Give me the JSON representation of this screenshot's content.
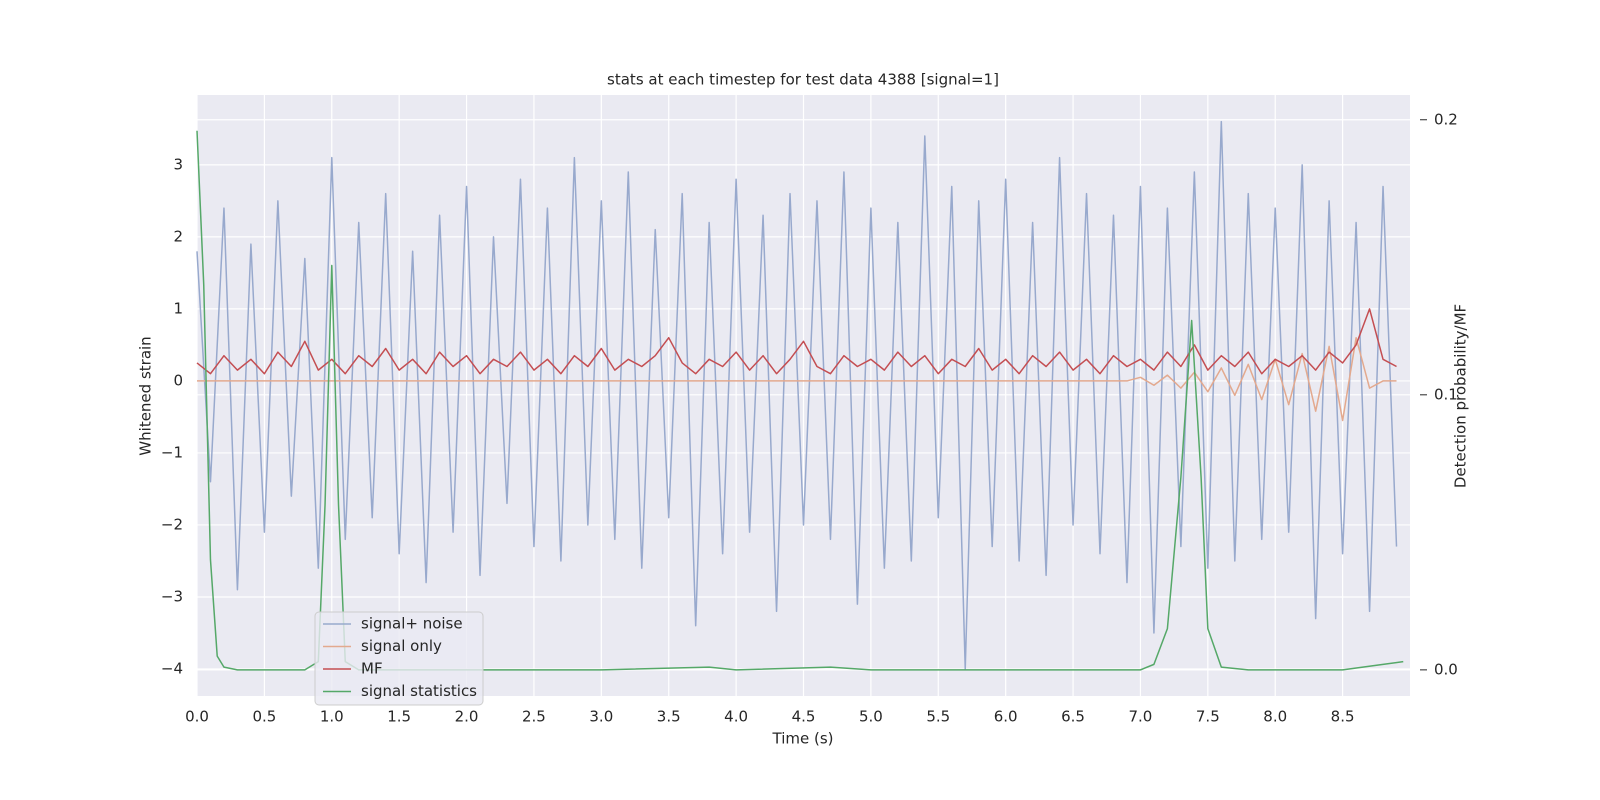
{
  "chart_data": {
    "type": "line",
    "title": "stats at each timestep for test data 4388 [signal=1]",
    "x_label": "Time (s)",
    "y_label": "Whitened strain",
    "y2_label": "Detection probability/MF",
    "xlim": [
      0,
      9.0
    ],
    "ylim": [
      -4.375,
      3.97
    ],
    "y2lim": [
      -0.0095,
      0.209
    ],
    "xticks": [
      {
        "value": 0,
        "label": "0.0"
      },
      0.5,
      {
        "value": 1,
        "label": "1.0"
      },
      1.5,
      {
        "value": 2,
        "label": "2.0"
      },
      2.5,
      {
        "value": 3,
        "label": "3.0"
      },
      3.5,
      {
        "value": 4,
        "label": "4.0"
      },
      4.5,
      {
        "value": 5,
        "label": "5.0"
      },
      5.5,
      {
        "value": 6,
        "label": "6.0"
      },
      6.5,
      {
        "value": 7,
        "label": "7.0"
      },
      7.5,
      {
        "value": 8,
        "label": "8.0"
      },
      8.5
    ],
    "yticks": [
      {
        "value": -4,
        "label": "−4"
      },
      {
        "value": -3,
        "label": "−3"
      },
      {
        "value": -2,
        "label": "−2"
      },
      {
        "value": -1,
        "label": "−1"
      },
      0,
      1,
      2,
      3
    ],
    "y2ticks": [
      {
        "value": 0,
        "label": "0.0"
      },
      0.1,
      0.2
    ],
    "grid": true,
    "legend": "lower left",
    "x": [
      0.0,
      0.1,
      0.2,
      0.3,
      0.4,
      0.5,
      0.6,
      0.7,
      0.8,
      0.9,
      1.0,
      1.1,
      1.2,
      1.3,
      1.4,
      1.5,
      1.6,
      1.7,
      1.8,
      1.9,
      2.0,
      2.1,
      2.2,
      2.3,
      2.4,
      2.5,
      2.6,
      2.7,
      2.8,
      2.9,
      3.0,
      3.1,
      3.2,
      3.3,
      3.4,
      3.5,
      3.6,
      3.7,
      3.8,
      3.9,
      4.0,
      4.1,
      4.2,
      4.3,
      4.4,
      4.5,
      4.6,
      4.7,
      4.8,
      4.9,
      5.0,
      5.1,
      5.2,
      5.3,
      5.4,
      5.5,
      5.6,
      5.7,
      5.8,
      5.9,
      6.0,
      6.1,
      6.2,
      6.3,
      6.4,
      6.5,
      6.6,
      6.7,
      6.8,
      6.9,
      7.0,
      7.1,
      7.2,
      7.3,
      7.4,
      7.5,
      7.6,
      7.7,
      7.8,
      7.9,
      8.0,
      8.1,
      8.2,
      8.3,
      8.4,
      8.5,
      8.6,
      8.7,
      8.8,
      8.9
    ],
    "series": [
      {
        "name": "signal+ noise",
        "color": "#98a9cd",
        "values": [
          1.8,
          -1.4,
          2.4,
          -2.9,
          1.9,
          -2.1,
          2.5,
          -1.6,
          1.7,
          -2.6,
          3.1,
          -2.2,
          2.2,
          -1.9,
          2.6,
          -2.4,
          1.8,
          -2.8,
          2.3,
          -2.1,
          2.7,
          -2.7,
          2.0,
          -1.7,
          2.8,
          -2.3,
          2.4,
          -2.5,
          3.1,
          -2.0,
          2.5,
          -2.2,
          2.9,
          -2.6,
          2.1,
          -1.9,
          2.6,
          -3.4,
          2.2,
          -2.4,
          2.8,
          -2.1,
          2.3,
          -3.2,
          2.6,
          -2.0,
          2.5,
          -2.2,
          2.9,
          -3.1,
          2.4,
          -2.6,
          2.2,
          -2.5,
          3.4,
          -1.9,
          2.7,
          -4.0,
          2.5,
          -2.3,
          2.8,
          -2.5,
          2.2,
          -2.7,
          3.1,
          -2.0,
          2.6,
          -2.4,
          2.3,
          -2.8,
          2.7,
          -3.5,
          2.4,
          -2.3,
          2.9,
          -2.6,
          3.6,
          -2.5,
          2.6,
          -2.2,
          2.4,
          -2.1,
          3.0,
          -3.3,
          2.5,
          -2.4,
          2.2,
          -3.2,
          2.7,
          -2.3
        ]
      },
      {
        "name": "signal only",
        "color": "#e3a98e",
        "values": [
          0,
          0,
          0,
          0,
          0,
          0,
          0,
          0,
          0,
          0,
          0,
          0,
          0,
          0,
          0,
          0,
          0,
          0,
          0,
          0,
          0,
          0,
          0,
          0,
          0,
          0,
          0,
          0,
          0,
          0,
          0,
          0,
          0,
          0,
          0,
          0,
          0,
          0,
          0,
          0,
          0,
          0,
          0,
          0,
          0,
          0,
          0,
          0,
          0,
          0,
          0,
          0,
          0,
          0,
          0,
          0,
          0,
          0,
          0,
          0,
          0,
          0,
          0,
          0,
          0,
          0,
          0,
          0,
          0,
          0,
          0.05,
          -0.06,
          0.08,
          -0.1,
          0.12,
          -0.15,
          0.18,
          -0.2,
          0.23,
          -0.26,
          0.3,
          -0.33,
          0.38,
          -0.42,
          0.48,
          -0.55,
          0.6,
          -0.1,
          0,
          0
        ]
      },
      {
        "name": "MF",
        "color": "#c44e52",
        "values": [
          0.25,
          0.1,
          0.35,
          0.15,
          0.3,
          0.1,
          0.4,
          0.2,
          0.55,
          0.15,
          0.3,
          0.1,
          0.35,
          0.2,
          0.45,
          0.15,
          0.3,
          0.1,
          0.4,
          0.2,
          0.35,
          0.1,
          0.3,
          0.2,
          0.4,
          0.15,
          0.3,
          0.1,
          0.35,
          0.2,
          0.45,
          0.15,
          0.3,
          0.2,
          0.35,
          0.6,
          0.25,
          0.1,
          0.3,
          0.2,
          0.4,
          0.15,
          0.35,
          0.1,
          0.3,
          0.55,
          0.2,
          0.1,
          0.35,
          0.2,
          0.3,
          0.15,
          0.4,
          0.2,
          0.35,
          0.1,
          0.3,
          0.2,
          0.45,
          0.15,
          0.3,
          0.1,
          0.35,
          0.2,
          0.4,
          0.15,
          0.3,
          0.1,
          0.35,
          0.2,
          0.3,
          0.15,
          0.4,
          0.2,
          0.5,
          0.15,
          0.35,
          0.2,
          0.4,
          0.1,
          0.3,
          0.2,
          0.35,
          0.15,
          0.4,
          0.25,
          0.5,
          1.0,
          0.3,
          0.2
        ]
      },
      {
        "name": "signal statistics",
        "color": "#55a868",
        "axis": "y2",
        "x": [
          0,
          0.05,
          0.1,
          0.15,
          0.2,
          0.3,
          0.5,
          0.8,
          0.9,
          0.95,
          1.0,
          1.05,
          1.1,
          1.2,
          1.5,
          2.0,
          3.0,
          3.8,
          4.0,
          4.7,
          5.0,
          6.0,
          7.0,
          7.1,
          7.2,
          7.3,
          7.38,
          7.45,
          7.5,
          7.6,
          7.8,
          8.0,
          8.5,
          8.8,
          8.95
        ],
        "values": [
          0.196,
          0.14,
          0.04,
          0.005,
          0.001,
          0.0,
          0.0,
          0.0,
          0.003,
          0.06,
          0.147,
          0.06,
          0.003,
          0.0,
          0.0,
          0.0,
          0.0,
          0.001,
          0.0,
          0.001,
          0.0,
          0.0,
          0.0,
          0.002,
          0.015,
          0.07,
          0.127,
          0.07,
          0.015,
          0.001,
          0.0,
          0.0,
          0.0,
          0.002,
          0.003
        ]
      }
    ]
  }
}
